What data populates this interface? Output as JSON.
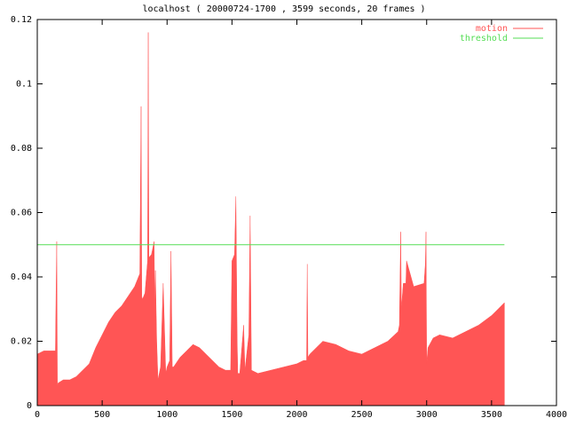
{
  "chart_data": {
    "type": "area",
    "title": "localhost ( 20000724-1700 , 3599 seconds, 20 frames )",
    "xlim": [
      0,
      4000
    ],
    "xticks": [
      0,
      500,
      1000,
      1500,
      2000,
      2500,
      3000,
      3500,
      4000
    ],
    "ylim": [
      0,
      0.12
    ],
    "yticks": [
      0,
      0.02,
      0.04,
      0.06,
      0.08,
      0.1,
      0.12
    ],
    "legend": "top-right",
    "series": [
      {
        "name": "motion",
        "color": "#ff5555",
        "style": "area",
        "x": [
          0,
          50,
          100,
          140,
          145,
          150,
          155,
          160,
          200,
          250,
          300,
          350,
          400,
          450,
          500,
          550,
          600,
          650,
          700,
          750,
          790,
          800,
          805,
          810,
          830,
          850,
          855,
          860,
          880,
          900,
          905,
          910,
          920,
          930,
          950,
          970,
          990,
          1000,
          1020,
          1030,
          1040,
          1050,
          1100,
          1150,
          1200,
          1250,
          1300,
          1350,
          1400,
          1450,
          1490,
          1500,
          1520,
          1530,
          1540,
          1545,
          1560,
          1590,
          1600,
          1630,
          1640,
          1650,
          1700,
          1800,
          1900,
          2000,
          2050,
          2075,
          2080,
          2085,
          2100,
          2150,
          2200,
          2300,
          2400,
          2500,
          2600,
          2700,
          2780,
          2790,
          2800,
          2805,
          2820,
          2840,
          2845,
          2900,
          2980,
          2990,
          2995,
          3000,
          3010,
          3050,
          3100,
          3200,
          3300,
          3400,
          3500,
          3550,
          3599
        ],
        "values": [
          0.016,
          0.017,
          0.017,
          0.017,
          0.035,
          0.051,
          0.006,
          0.007,
          0.008,
          0.008,
          0.009,
          0.011,
          0.013,
          0.018,
          0.022,
          0.026,
          0.029,
          0.031,
          0.034,
          0.037,
          0.041,
          0.093,
          0.034,
          0.033,
          0.035,
          0.045,
          0.116,
          0.046,
          0.047,
          0.051,
          0.03,
          0.042,
          0.02,
          0.008,
          0.012,
          0.038,
          0.01,
          0.012,
          0.014,
          0.048,
          0.012,
          0.012,
          0.015,
          0.017,
          0.019,
          0.018,
          0.016,
          0.014,
          0.012,
          0.011,
          0.011,
          0.045,
          0.047,
          0.065,
          0.02,
          0.01,
          0.01,
          0.025,
          0.011,
          0.022,
          0.059,
          0.011,
          0.01,
          0.011,
          0.012,
          0.013,
          0.014,
          0.014,
          0.044,
          0.015,
          0.016,
          0.018,
          0.02,
          0.019,
          0.017,
          0.016,
          0.018,
          0.02,
          0.023,
          0.025,
          0.054,
          0.03,
          0.038,
          0.038,
          0.045,
          0.037,
          0.038,
          0.044,
          0.054,
          0.013,
          0.018,
          0.021,
          0.022,
          0.021,
          0.023,
          0.025,
          0.028,
          0.03,
          0.032
        ]
      },
      {
        "name": "threshold",
        "color": "#55dd55",
        "style": "line",
        "x": [
          0,
          3599
        ],
        "values": [
          0.05,
          0.05
        ]
      }
    ]
  }
}
